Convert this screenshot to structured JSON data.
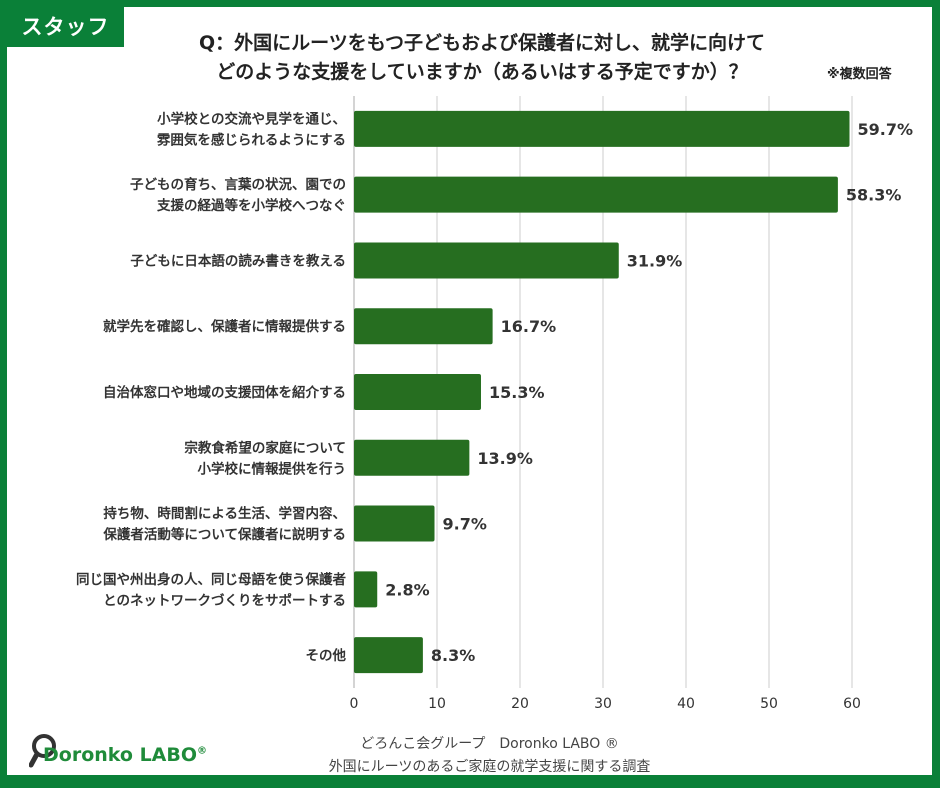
{
  "badge": {
    "label": "スタッフ"
  },
  "header": {
    "title_line1": "Q：外国にルーツをもつ子どもおよび保護者に対し、就学に向けて",
    "title_line2": "どのような支援をしていますか（あるいはする予定ですか）？",
    "note": "※複数回答"
  },
  "colors": {
    "bar": "#266e20",
    "frame": "#0a8038",
    "grid": "#d9d9d9",
    "text": "#333333"
  },
  "chart_data": {
    "type": "bar",
    "orientation": "horizontal",
    "title": "Q：外国にルーツをもつ子どもおよび保護者に対し、就学に向けてどのような支援をしていますか（あるいはする予定ですか）？",
    "categories": [
      [
        "小学校との交流や見学を通じ、",
        "雰囲気を感じられるようにする"
      ],
      [
        "子どもの育ち、言葉の状況、園での",
        "支援の経過等を小学校へつなぐ"
      ],
      [
        "子どもに日本語の読み書きを教える"
      ],
      [
        "就学先を確認し、保護者に情報提供する"
      ],
      [
        "自治体窓口や地域の支援団体を紹介する"
      ],
      [
        "宗教食希望の家庭について",
        "小学校に情報提供を行う"
      ],
      [
        "持ち物、時間割による生活、学習内容、",
        "保護者活動等について保護者に説明する"
      ],
      [
        "同じ国や州出身の人、同じ母語を使う保護者",
        "とのネットワークづくりをサポートする"
      ],
      [
        "その他"
      ]
    ],
    "values": [
      59.7,
      58.3,
      31.9,
      16.7,
      15.3,
      13.9,
      9.7,
      2.8,
      8.3
    ],
    "labels": [
      "59.7%",
      "58.3%",
      "31.9%",
      "16.7%",
      "15.3%",
      "13.9%",
      "9.7%",
      "2.8%",
      "8.3%"
    ],
    "xlim": [
      0,
      60
    ],
    "xticks": [
      "0",
      "10",
      "20",
      "30",
      "40",
      "50",
      "60"
    ],
    "xlabel": "",
    "ylabel": "",
    "grid": true,
    "legend": "none"
  },
  "footer": {
    "line1": "どろんこ会グループ　Doronko LABO ®",
    "line2": "外国にルーツのあるご家庭の就学支援に関する調査",
    "logo_text": "Doronko LABO",
    "logo_reg": "®"
  }
}
